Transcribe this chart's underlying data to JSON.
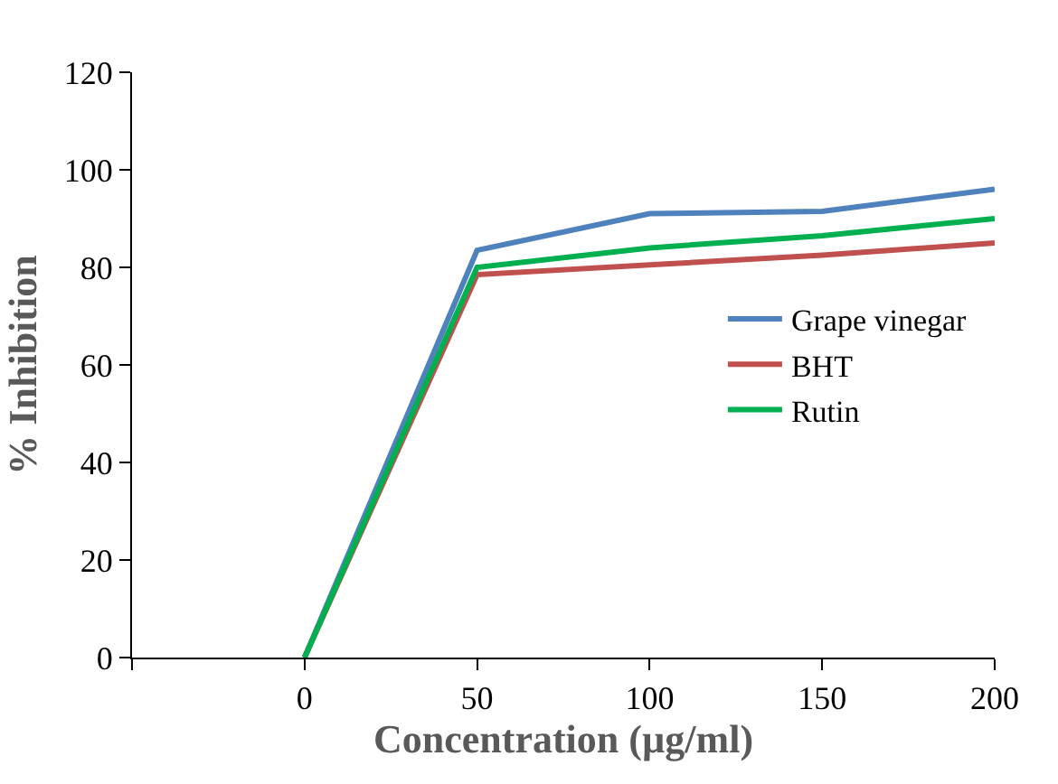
{
  "chart_data": {
    "type": "line",
    "xlabel": "Concentration (µg/ml)",
    "ylabel": "% Inhibition",
    "x": [
      0,
      50,
      100,
      150,
      200
    ],
    "series": [
      {
        "name": "Grape vinegar",
        "color": "#4f81bd",
        "values": [
          0,
          83.5,
          91,
          91.5,
          96
        ]
      },
      {
        "name": "BHT",
        "color": "#c0504d",
        "values": [
          0,
          78.5,
          80.5,
          82.5,
          85
        ]
      },
      {
        "name": "Rutin",
        "color": "#00b050",
        "values": [
          0,
          80,
          84,
          86.5,
          90
        ]
      }
    ],
    "xlim": [
      -50,
      200
    ],
    "xticks": [
      {
        "value": -50,
        "label": null
      },
      0,
      50,
      100,
      150,
      200
    ],
    "ylim": [
      0,
      120
    ],
    "yticks": [
      0,
      20,
      40,
      60,
      80,
      100,
      120
    ],
    "legend": "right",
    "marker": "none",
    "line_style": "solid"
  }
}
